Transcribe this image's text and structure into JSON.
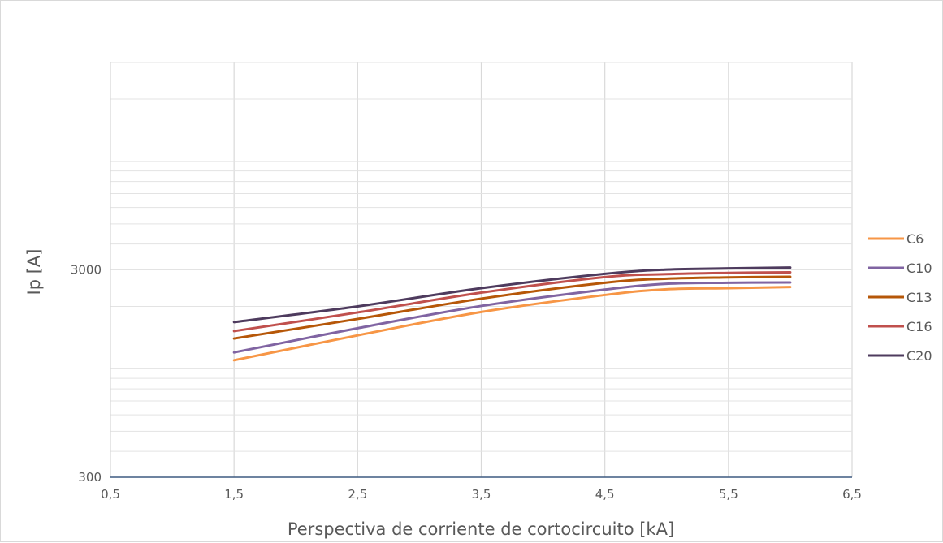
{
  "chart_data": {
    "type": "line",
    "title": "",
    "xlabel": "Perspectiva de corriente de cortocircuito [kA]",
    "ylabel": "Ip [A]",
    "xlim": [
      0.5,
      6.5
    ],
    "ylim": [
      300,
      30000
    ],
    "y_scale": "log",
    "x_ticks": [
      "0,5",
      "1,5",
      "2,5",
      "3,5",
      "4,5",
      "5,5",
      "6,5"
    ],
    "y_ticks": [
      {
        "value": 300,
        "label": "300"
      },
      {
        "value": 3000,
        "label": "3000"
      }
    ],
    "grid": true,
    "legend_position": "right",
    "x": [
      1.5,
      2.5,
      3.5,
      4.5,
      5.0,
      5.5,
      6.0
    ],
    "series": [
      {
        "name": "C6",
        "color": "#f79646",
        "values": [
          1100,
          1450,
          1880,
          2270,
          2420,
          2450,
          2480
        ]
      },
      {
        "name": "C10",
        "color": "#8064a2",
        "values": [
          1200,
          1570,
          2010,
          2410,
          2570,
          2600,
          2610
        ]
      },
      {
        "name": "C13",
        "color": "#b65708",
        "values": [
          1400,
          1740,
          2180,
          2600,
          2720,
          2760,
          2780
        ]
      },
      {
        "name": "C16",
        "color": "#c0504d",
        "values": [
          1520,
          1870,
          2330,
          2770,
          2860,
          2900,
          2920
        ]
      },
      {
        "name": "C20",
        "color": "#4e3b5e",
        "values": [
          1680,
          2000,
          2450,
          2870,
          3010,
          3050,
          3080
        ]
      }
    ]
  }
}
